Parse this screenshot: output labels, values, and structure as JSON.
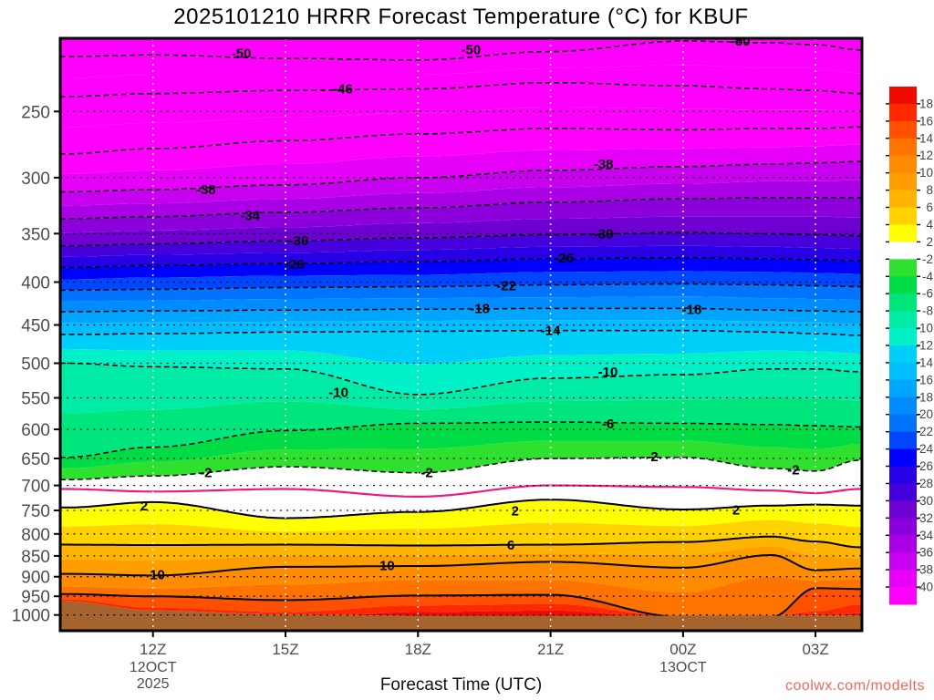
{
  "title": "2025101210 HRRR Forecast Temperature (°C) for KBUF",
  "watermark": "coolwx.com/modelts",
  "chart_data": {
    "type": "heatmap",
    "subtype": "filled-contour time-height cross-section",
    "title": "2025101210 HRRR Forecast Temperature (°C) for KBUF",
    "xlabel": "Forecast Time (UTC)",
    "ylabel": "",
    "grid": true,
    "legend_position": "right-colorbar",
    "t_domain": [
      9.9,
      28.05
    ],
    "p_domain": [
      204.4,
      1044.4
    ],
    "y_ticks": [
      250,
      300,
      350,
      400,
      450,
      500,
      550,
      600,
      650,
      700,
      750,
      800,
      850,
      900,
      950,
      1000
    ],
    "x_ticks": [
      {
        "t": 12,
        "label": "12Z",
        "sub": "12OCT",
        "sub2": "2025"
      },
      {
        "t": 15,
        "label": "15Z"
      },
      {
        "t": 18,
        "label": "18Z"
      },
      {
        "t": 21,
        "label": "21Z"
      },
      {
        "t": 24,
        "label": "00Z",
        "sub": "13OCT"
      },
      {
        "t": 27,
        "label": "03Z"
      }
    ],
    "times": [
      10,
      12,
      15,
      18,
      21,
      24,
      26,
      27,
      28
    ],
    "top_fill": "#FF00FF",
    "underground_fill": "#A5632E",
    "zero_line_color": "#F01880",
    "boundaries": [
      {
        "level": -50,
        "style": "dashed",
        "band_below": "#FF00FF",
        "pressures": [
          215,
          214,
          216,
          217,
          212,
          206,
          207,
          208,
          211
        ]
      },
      {
        "level": -48,
        "style": "none",
        "band_below": "#FF00FF",
        "pressures": [
          228,
          226,
          226,
          226,
          222,
          220,
          222,
          222,
          225
        ]
      },
      {
        "level": -46,
        "style": "dashed",
        "band_below": "#FF00FF",
        "pressures": [
          240,
          238,
          236,
          235,
          231,
          233,
          235,
          236,
          238
        ]
      },
      {
        "level": -44,
        "style": "none",
        "band_below": "#FF00FF",
        "pressures": [
          261,
          258,
          254,
          251,
          247,
          248,
          249,
          249,
          250
        ]
      },
      {
        "level": -42,
        "style": "dashed",
        "band_below": "#FF00FF",
        "pressures": [
          281,
          277,
          271,
          266,
          262,
          263,
          262,
          262,
          261
        ]
      },
      {
        "level": -40,
        "style": "none",
        "band_below": "#E600FA",
        "pressures": [
          297,
          294,
          289,
          283,
          278,
          277,
          276,
          275,
          274
        ]
      },
      {
        "level": -38,
        "style": "dashed",
        "band_below": "#C800F0",
        "pressures": [
          312,
          310,
          306,
          300,
          294,
          291,
          289,
          288,
          287
        ]
      },
      {
        "level": -36,
        "style": "none",
        "band_below": "#AA00E6",
        "pressures": [
          324,
          322,
          318,
          313,
          308,
          305,
          303,
          303,
          302
        ]
      },
      {
        "level": -34,
        "style": "dashed",
        "band_below": "#8C00DC",
        "pressures": [
          336,
          334,
          330,
          326,
          321,
          318,
          317,
          317,
          317
        ]
      },
      {
        "level": -32,
        "style": "none",
        "band_below": "#6E00D2",
        "pressures": [
          349,
          347,
          344,
          340,
          336,
          334,
          334,
          334,
          335
        ]
      },
      {
        "level": -30,
        "style": "dashed",
        "band_below": "#4600DC",
        "pressures": [
          362,
          360,
          357,
          354,
          351,
          349,
          350,
          351,
          352
        ]
      },
      {
        "level": -28,
        "style": "none",
        "band_below": "#2800E6",
        "pressures": [
          373,
          371,
          369,
          366,
          363,
          362,
          363,
          364,
          365
        ]
      },
      {
        "level": -26,
        "style": "dashed",
        "band_below": "#0000FF",
        "pressures": [
          384,
          382,
          380,
          378,
          375,
          374,
          375,
          376,
          377
        ]
      },
      {
        "level": -24,
        "style": "none",
        "band_below": "#0046FF",
        "pressures": [
          397,
          395,
          393,
          392,
          389,
          388,
          389,
          390,
          391
        ]
      },
      {
        "level": -22,
        "style": "dashed",
        "band_below": "#0073FF",
        "pressures": [
          409,
          408,
          406,
          405,
          403,
          402,
          403,
          404,
          405
        ]
      },
      {
        "level": -20,
        "style": "none",
        "band_below": "#008CFF",
        "pressures": [
          422,
          421,
          419,
          418,
          417,
          416,
          418,
          419,
          420
        ]
      },
      {
        "level": -18,
        "style": "dashed",
        "band_below": "#00A5FF",
        "pressures": [
          434,
          433,
          432,
          431,
          430,
          430,
          432,
          433,
          434
        ]
      },
      {
        "level": -16,
        "style": "none",
        "band_below": "#00BEFF",
        "pressures": [
          448,
          447,
          446,
          445,
          444,
          444,
          446,
          447,
          449
        ]
      },
      {
        "level": -14,
        "style": "dashed",
        "band_below": "#00CFFA",
        "pressures": [
          462,
          461,
          459,
          458,
          457,
          457,
          459,
          461,
          463
        ]
      },
      {
        "level": -12,
        "style": "none",
        "band_below": "#00F0C8",
        "pressures": [
          481,
          483,
          483,
          501,
          489,
          487,
          483,
          484,
          487
        ]
      },
      {
        "level": -10,
        "style": "dashed",
        "band_below": "#00EBA5",
        "pressures": [
          500,
          505,
          508,
          545,
          521,
          516,
          508,
          508,
          512
        ]
      },
      {
        "level": -8,
        "style": "none",
        "band_below": "#00E67D",
        "pressures": [
          574,
          568,
          555,
          568,
          555,
          553,
          550,
          551,
          554
        ]
      },
      {
        "level": -6,
        "style": "dashed",
        "band_below": "#00DC46",
        "pressures": [
          648,
          630,
          602,
          590,
          588,
          590,
          592,
          594,
          596
        ]
      },
      {
        "level": -4,
        "style": "none",
        "band_below": "#2FE02F",
        "pressures": [
          668,
          656,
          634,
          633,
          619,
          619,
          630,
          634,
          625
        ]
      },
      {
        "level": -2,
        "style": "dashed",
        "band_below": "#FFFFFF",
        "pressures": [
          689,
          682,
          665,
          676,
          650,
          648,
          668,
          673,
          653
        ]
      },
      {
        "level": 0,
        "style": "zero",
        "band_below": "#FFFFFF",
        "pressures": [
          707,
          712,
          707,
          722,
          700,
          703,
          710,
          715,
          707
        ]
      },
      {
        "level": 2,
        "style": "solid",
        "band_below": "#FFFF00",
        "pressures": [
          744,
          733,
          766,
          753,
          728,
          748,
          740,
          738,
          740
        ]
      },
      {
        "level": 4,
        "style": "none",
        "band_below": "#FFD200",
        "pressures": [
          784,
          779,
          795,
          789,
          776,
          783,
          770,
          777,
          785
        ]
      },
      {
        "level": 6,
        "style": "solid",
        "band_below": "#FFB400",
        "pressures": [
          824,
          825,
          824,
          826,
          824,
          818,
          806,
          817,
          830
        ]
      },
      {
        "level": 8,
        "style": "none",
        "band_below": "#FF9E00",
        "pressures": [
          858,
          861,
          850,
          850,
          844,
          848,
          828,
          850,
          855
        ]
      },
      {
        "level": 10,
        "style": "solid",
        "band_below": "#FF8C00",
        "pressures": [
          893,
          897,
          876,
          874,
          864,
          878,
          848,
          884,
          880
        ]
      },
      {
        "level": 12,
        "style": "none",
        "band_below": "#FF7300",
        "pressures": [
          925,
          930,
          920,
          908,
          908,
          940,
          900,
          910,
          906
        ]
      },
      {
        "level": 14,
        "style": "solid",
        "band_below": "#FF5000",
        "pressures": [
          944,
          950,
          960,
          948,
          946,
          1006,
          1006,
          929,
          931
        ]
      },
      {
        "level": 16,
        "style": "none",
        "band_below": "#FF2800",
        "pressures": [
          958,
          980,
          992,
          974,
          970,
          1005,
          1005,
          990,
          972
        ]
      },
      {
        "level": 18,
        "style": "none",
        "band_below": "#F00A00",
        "pressures": [
          1010,
          1010,
          1010,
          992,
          988,
          1010,
          1010,
          1010,
          995
        ]
      },
      {
        "level": "surface",
        "style": "none",
        "band_below": "#A5632E",
        "pressures": [
          963,
          988,
          999,
          1002,
          1002,
          1002,
          1002,
          1001,
          1001
        ]
      }
    ],
    "contour_labels": [
      {
        "text": "-50",
        "t": 14.0,
        "p": 213
      },
      {
        "text": "-50",
        "t": 19.2,
        "p": 211
      },
      {
        "text": "-50",
        "t": 25.3,
        "p": 206
      },
      {
        "text": "-46",
        "t": 16.3,
        "p": 235
      },
      {
        "text": "-38",
        "t": 13.2,
        "p": 310
      },
      {
        "text": "-38",
        "t": 22.2,
        "p": 289
      },
      {
        "text": "-34",
        "t": 14.2,
        "p": 333
      },
      {
        "text": "-30",
        "t": 15.3,
        "p": 357
      },
      {
        "text": "-30",
        "t": 22.2,
        "p": 350
      },
      {
        "text": "-26",
        "t": 15.2,
        "p": 381
      },
      {
        "text": "-26",
        "t": 21.3,
        "p": 374
      },
      {
        "text": "-22",
        "t": 20.0,
        "p": 404
      },
      {
        "text": "-18",
        "t": 19.4,
        "p": 430
      },
      {
        "text": "-18",
        "t": 24.2,
        "p": 431
      },
      {
        "text": "-14",
        "t": 21.0,
        "p": 457
      },
      {
        "text": "-10",
        "t": 16.2,
        "p": 542
      },
      {
        "text": "-10",
        "t": 22.3,
        "p": 512
      },
      {
        "text": "-6",
        "t": 22.3,
        "p": 591
      },
      {
        "text": "-2",
        "t": 13.2,
        "p": 676
      },
      {
        "text": "-2",
        "t": 18.2,
        "p": 676
      },
      {
        "text": "-2",
        "t": 23.3,
        "p": 647
      },
      {
        "text": "-2",
        "t": 26.5,
        "p": 671
      },
      {
        "text": "2",
        "t": 11.8,
        "p": 741
      },
      {
        "text": "2",
        "t": 20.2,
        "p": 751
      },
      {
        "text": "2",
        "t": 25.2,
        "p": 749
      },
      {
        "text": "6",
        "t": 20.1,
        "p": 825
      },
      {
        "text": "10",
        "t": 12.1,
        "p": 895
      },
      {
        "text": "10",
        "t": 17.3,
        "p": 873
      }
    ],
    "colorbar": {
      "cells": [
        "#F00A00",
        "#FF2800",
        "#FF5000",
        "#FF7300",
        "#FF8C00",
        "#FF9E00",
        "#FFB400",
        "#FFD200",
        "#FFFF00",
        "#FFFFFF",
        "#2FE02F",
        "#00DC46",
        "#00E67D",
        "#00EBA5",
        "#00F0C8",
        "#00CFFA",
        "#00BEFF",
        "#00A5FF",
        "#008CFF",
        "#0073FF",
        "#0046FF",
        "#0000FF",
        "#2800E6",
        "#4600DC",
        "#6E00D2",
        "#8C00DC",
        "#AA00E6",
        "#C800F0",
        "#E600FA",
        "#FF00FF"
      ],
      "labels": [
        "18",
        "16",
        "14",
        "12",
        "10",
        "8",
        "6",
        "4",
        "2",
        "-2",
        "-4",
        "-6",
        "-8",
        "-10",
        "-12",
        "-14",
        "-16",
        "-18",
        "-20",
        "-22",
        "-24",
        "-26",
        "-28",
        "-30",
        "-32",
        "-34",
        "-36",
        "-38",
        "-40"
      ]
    }
  }
}
